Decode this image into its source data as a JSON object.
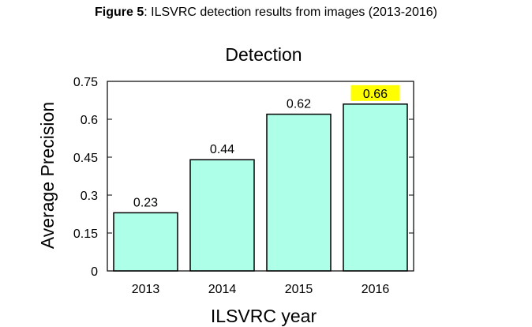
{
  "caption": {
    "label": "Figure 5",
    "text": ": ILSVRC detection results from images (2013-2016)"
  },
  "chart_data": {
    "type": "bar",
    "title": "Detection",
    "xlabel": "ILSVRC year",
    "ylabel": "Average Precision",
    "categories": [
      "2013",
      "2014",
      "2015",
      "2016"
    ],
    "values": [
      0.23,
      0.44,
      0.62,
      0.66
    ],
    "value_labels": [
      "0.23",
      "0.44",
      "0.62",
      "0.66"
    ],
    "ylim": [
      0,
      0.75
    ],
    "yticks": [
      0,
      0.15,
      0.3,
      0.45,
      0.6,
      0.75
    ],
    "ytick_labels": [
      "0",
      "0.15",
      "0.3",
      "0.45",
      "0.6",
      "0.75"
    ],
    "grid": false,
    "legend": "none",
    "colors": {
      "bar_fill": "#aeffe8",
      "bar_stroke": "#000000",
      "highlight_label_bg": "#ffff00"
    },
    "highlighted_label_index": 3
  }
}
